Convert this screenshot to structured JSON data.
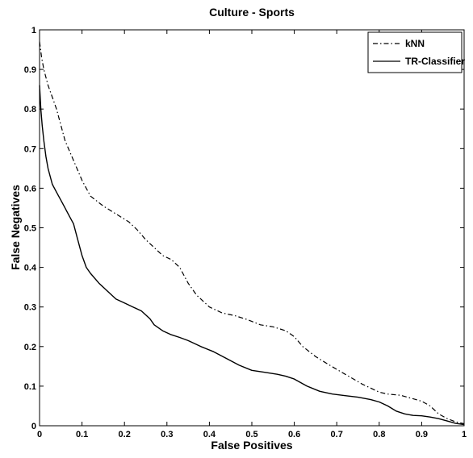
{
  "chart_data": {
    "type": "line",
    "title": "Culture - Sports",
    "xlabel": "False Positives",
    "ylabel": "False Negatives",
    "xlim": [
      0,
      1
    ],
    "ylim": [
      0,
      1
    ],
    "x_ticks": [
      "0",
      "0.1",
      "0.2",
      "0.3",
      "0.4",
      "0.5",
      "0.6",
      "0.7",
      "0.8",
      "0.9",
      "1"
    ],
    "y_ticks": [
      "0",
      "0.1",
      "0.2",
      "0.3",
      "0.4",
      "0.5",
      "0.6",
      "0.7",
      "0.8",
      "0.9",
      "1"
    ],
    "grid": false,
    "legend": {
      "placement": "top-right"
    },
    "series": [
      {
        "name": "kNN",
        "style": "dash-dot",
        "color": "#000000",
        "x": [
          0,
          0.005,
          0.01,
          0.02,
          0.03,
          0.04,
          0.05,
          0.06,
          0.08,
          0.1,
          0.12,
          0.15,
          0.18,
          0.21,
          0.23,
          0.25,
          0.27,
          0.29,
          0.31,
          0.33,
          0.35,
          0.37,
          0.4,
          0.43,
          0.46,
          0.49,
          0.52,
          0.55,
          0.58,
          0.6,
          0.62,
          0.65,
          0.68,
          0.72,
          0.76,
          0.8,
          0.82,
          0.85,
          0.88,
          0.9,
          0.92,
          0.94,
          0.96,
          0.98,
          1.0
        ],
        "y": [
          0.97,
          0.93,
          0.9,
          0.86,
          0.83,
          0.8,
          0.76,
          0.72,
          0.67,
          0.62,
          0.58,
          0.555,
          0.535,
          0.515,
          0.495,
          0.47,
          0.45,
          0.43,
          0.42,
          0.4,
          0.36,
          0.33,
          0.3,
          0.285,
          0.278,
          0.268,
          0.255,
          0.25,
          0.24,
          0.225,
          0.2,
          0.175,
          0.155,
          0.13,
          0.105,
          0.085,
          0.08,
          0.077,
          0.068,
          0.062,
          0.05,
          0.03,
          0.018,
          0.01,
          0.005
        ]
      },
      {
        "name": "TR-Classifier",
        "style": "solid",
        "color": "#000000",
        "x": [
          0,
          0.003,
          0.006,
          0.01,
          0.015,
          0.02,
          0.03,
          0.04,
          0.05,
          0.06,
          0.07,
          0.08,
          0.09,
          0.1,
          0.11,
          0.12,
          0.14,
          0.16,
          0.18,
          0.2,
          0.22,
          0.24,
          0.26,
          0.27,
          0.29,
          0.31,
          0.33,
          0.35,
          0.38,
          0.41,
          0.44,
          0.47,
          0.5,
          0.53,
          0.56,
          0.58,
          0.6,
          0.63,
          0.66,
          0.69,
          0.72,
          0.75,
          0.78,
          0.8,
          0.82,
          0.84,
          0.86,
          0.88,
          0.9,
          0.92,
          0.94,
          0.96,
          0.98,
          1.0
        ],
        "y": [
          0.86,
          0.8,
          0.76,
          0.72,
          0.68,
          0.65,
          0.61,
          0.59,
          0.57,
          0.55,
          0.53,
          0.51,
          0.47,
          0.43,
          0.4,
          0.385,
          0.36,
          0.34,
          0.32,
          0.31,
          0.3,
          0.29,
          0.27,
          0.255,
          0.24,
          0.23,
          0.223,
          0.215,
          0.2,
          0.187,
          0.17,
          0.153,
          0.14,
          0.135,
          0.13,
          0.125,
          0.118,
          0.1,
          0.087,
          0.08,
          0.076,
          0.072,
          0.066,
          0.06,
          0.05,
          0.037,
          0.03,
          0.026,
          0.025,
          0.022,
          0.018,
          0.012,
          0.006,
          0.003
        ]
      }
    ]
  }
}
